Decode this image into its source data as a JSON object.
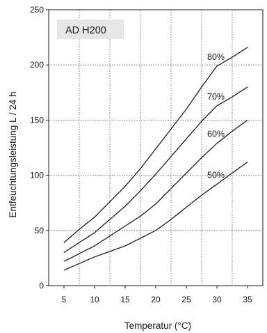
{
  "chart_data": {
    "type": "line",
    "title": "AD H200",
    "xlabel": "Temperatur (°C)",
    "ylabel": "Entfeuchtungsleistung L / 24 h",
    "xlim": [
      2.5,
      37.5
    ],
    "ylim": [
      0,
      250
    ],
    "x_ticks": [
      "5",
      "10",
      "15",
      "20",
      "25",
      "30",
      "35"
    ],
    "y_ticks": [
      "0",
      "50",
      "100",
      "150",
      "200",
      "250"
    ],
    "grid": true,
    "grid_style": "dotted",
    "line_color": "#1a1a1a",
    "title_box_color": "#e6e6e6",
    "series": [
      {
        "name": "80%",
        "x": [
          5,
          7.5,
          10,
          12.5,
          15,
          17.5,
          20,
          22.5,
          25,
          27.5,
          30,
          32.5,
          35
        ],
        "y": [
          39,
          51,
          62,
          76,
          90,
          106,
          124,
          142,
          160,
          180,
          199,
          207,
          216
        ]
      },
      {
        "name": "70%",
        "x": [
          5,
          7.5,
          10,
          12.5,
          15,
          17.5,
          20,
          22.5,
          25,
          27.5,
          30,
          32.5,
          35
        ],
        "y": [
          30,
          39,
          48,
          60,
          72,
          86,
          101,
          117,
          133,
          149,
          163,
          171,
          180
        ]
      },
      {
        "name": "60%",
        "x": [
          5,
          7.5,
          10,
          12.5,
          15,
          17.5,
          20,
          22.5,
          25,
          27.5,
          30,
          32.5,
          35
        ],
        "y": [
          22,
          29,
          36,
          45,
          54,
          63,
          74,
          88,
          102,
          116,
          129,
          140,
          150
        ]
      },
      {
        "name": "50%",
        "x": [
          5,
          7.5,
          10,
          12.5,
          15,
          17.5,
          20,
          22.5,
          25,
          27.5,
          30,
          32.5,
          35
        ],
        "y": [
          14,
          20,
          26,
          31,
          36,
          43,
          50,
          60,
          71,
          82,
          92,
          102,
          112
        ]
      }
    ]
  }
}
